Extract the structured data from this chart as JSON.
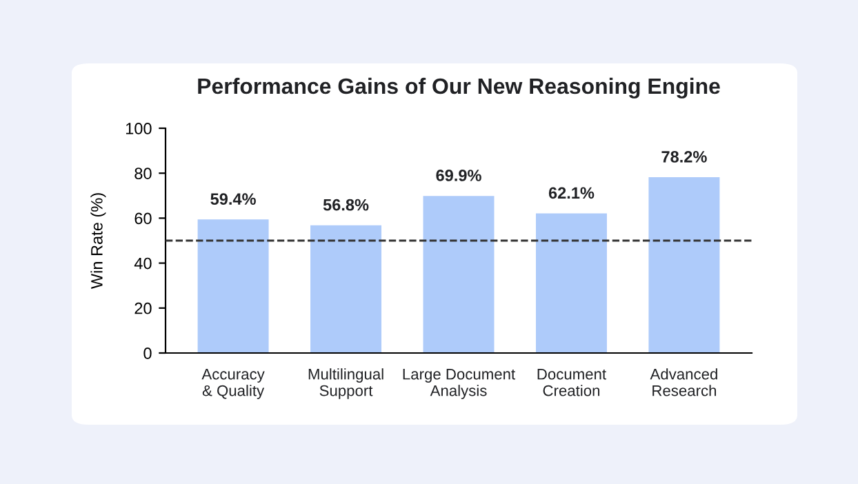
{
  "chart_data": {
    "type": "bar",
    "title": "Performance Gains of Our New Reasoning Engine",
    "ylabel": "Win Rate (%)",
    "categories": [
      "Accuracy\n& Quality",
      "Multilingual\nSupport",
      "Large Document\nAnalysis",
      "Document\nCreation",
      "Advanced\nResearch"
    ],
    "values": [
      59.4,
      56.8,
      69.9,
      62.1,
      78.2
    ],
    "value_labels": [
      "59.4%",
      "56.8%",
      "69.9%",
      "62.1%",
      "78.2%"
    ],
    "color": "#aecbfa",
    "ylim": [
      0,
      100
    ],
    "yticks": [
      0,
      20,
      40,
      60,
      80,
      100
    ],
    "ref_lines": [
      {
        "axis": "y",
        "value": 50,
        "color": "#333333",
        "line_style": "dashed"
      }
    ],
    "grid": false
  }
}
